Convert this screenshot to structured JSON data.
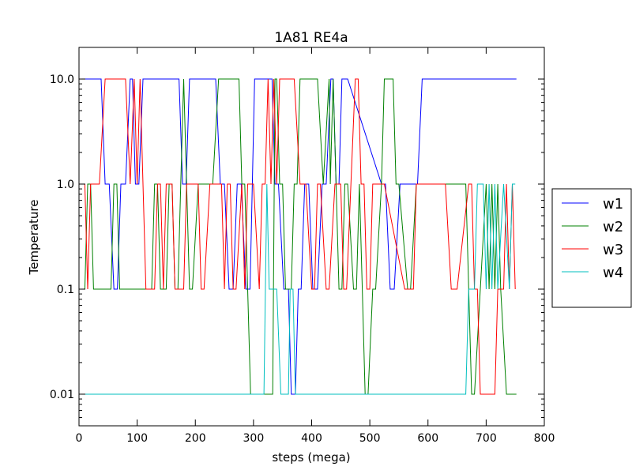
{
  "chart_data": {
    "type": "line",
    "title": "1A81 RE4a",
    "xlabel": "steps (mega)",
    "ylabel": "Temperature",
    "xlim": [
      0,
      800
    ],
    "ylim": [
      0.005,
      20
    ],
    "yscale": "log",
    "xticks": [
      0,
      100,
      200,
      300,
      400,
      500,
      600,
      700,
      800
    ],
    "xtick_labels": [
      "0",
      "100",
      "200",
      "300",
      "400",
      "500",
      "600",
      "700",
      "800"
    ],
    "yticks": [
      0.01,
      0.1,
      1.0,
      10.0
    ],
    "ytick_labels": [
      "0.01",
      "0.1",
      "1.0",
      "10.0"
    ],
    "grid": false,
    "legend_position": "outside-right",
    "series": [
      {
        "name": "w1",
        "color": "#0000ff",
        "x": [
          5,
          38,
          45,
          52,
          60,
          66,
          72,
          80,
          88,
          92,
          97,
          103,
          110,
          172,
          178,
          184,
          190,
          235,
          243,
          250,
          258,
          265,
          272,
          279,
          287,
          294,
          302,
          332,
          337,
          343,
          352,
          360,
          365,
          372,
          377,
          382,
          388,
          395,
          402,
          410,
          418,
          425,
          433,
          437,
          442,
          447,
          452,
          462,
          520,
          527,
          535,
          542,
          552,
          562,
          575,
          582,
          590,
          752
        ],
        "y": [
          10,
          10,
          1,
          1,
          0.1,
          0.1,
          1,
          1,
          10,
          10,
          1,
          1,
          10,
          10,
          1,
          1,
          10,
          10,
          1,
          1,
          0.1,
          0.1,
          1,
          1,
          0.1,
          0.1,
          10,
          10,
          1,
          1,
          0.1,
          0.1,
          0.01,
          0.01,
          0.1,
          0.1,
          1,
          1,
          0.1,
          0.1,
          1,
          1,
          10,
          10,
          1,
          1,
          10,
          10,
          1,
          1,
          0.1,
          0.1,
          1,
          1,
          1,
          1,
          10,
          10
        ]
      },
      {
        "name": "w2",
        "color": "#008000",
        "x": [
          5,
          10,
          15,
          20,
          25,
          30,
          55,
          60,
          65,
          70,
          75,
          125,
          130,
          135,
          140,
          150,
          155,
          160,
          165,
          170,
          175,
          180,
          185,
          190,
          195,
          205,
          230,
          240,
          275,
          280,
          285,
          290,
          295,
          300,
          325,
          333,
          337,
          340,
          345,
          350,
          355,
          365,
          370,
          375,
          380,
          410,
          420,
          430,
          432,
          437,
          442,
          447,
          452,
          457,
          462,
          472,
          477,
          482,
          487,
          492,
          497,
          505,
          510,
          520,
          525,
          540,
          545,
          550,
          565,
          570,
          580,
          585,
          590,
          600,
          665,
          670,
          675,
          680,
          690,
          700,
          705,
          710,
          715,
          720,
          725,
          735,
          745,
          752
        ],
        "y": [
          0.1,
          0.1,
          1,
          1,
          0.1,
          0.1,
          0.1,
          1,
          1,
          0.1,
          0.1,
          0.1,
          1,
          1,
          0.1,
          0.1,
          1,
          1,
          0.1,
          0.1,
          1,
          10,
          1,
          0.1,
          0.1,
          1,
          1,
          10,
          10,
          1,
          1,
          0.1,
          0.01,
          0.01,
          0.01,
          0.01,
          10,
          10,
          1,
          1,
          0.1,
          0.1,
          1,
          1,
          10,
          10,
          1,
          10,
          1,
          10,
          1,
          0.1,
          0.1,
          1,
          1,
          0.1,
          0.1,
          1,
          0.1,
          0.01,
          0.01,
          0.1,
          0.1,
          1,
          10,
          10,
          1,
          1,
          0.1,
          0.1,
          1,
          1,
          1,
          1,
          1,
          0.1,
          0.01,
          0.01,
          0.1,
          1,
          0.1,
          1,
          0.1,
          1,
          0.1,
          0.01,
          0.01,
          0.01
        ]
      },
      {
        "name": "w3",
        "color": "#ff0000",
        "x": [
          5,
          10,
          15,
          20,
          25,
          35,
          45,
          80,
          88,
          95,
          100,
          105,
          110,
          115,
          120,
          130,
          135,
          140,
          145,
          150,
          160,
          165,
          170,
          180,
          185,
          195,
          205,
          210,
          215,
          225,
          235,
          245,
          250,
          255,
          260,
          265,
          270,
          280,
          285,
          290,
          300,
          310,
          315,
          320,
          325,
          330,
          335,
          340,
          345,
          350,
          370,
          380,
          390,
          400,
          405,
          410,
          415,
          425,
          430,
          440,
          450,
          455,
          460,
          475,
          480,
          485,
          490,
          495,
          500,
          505,
          510,
          520,
          525,
          560,
          565,
          575,
          580,
          590,
          600,
          620,
          630,
          640,
          650,
          670,
          675,
          680,
          685,
          690,
          700,
          715,
          720,
          730,
          735,
          740,
          745,
          750
        ],
        "y": [
          1,
          1,
          0.1,
          1,
          1,
          1,
          10,
          10,
          1,
          10,
          1,
          10,
          1,
          0.1,
          0.1,
          0.1,
          1,
          1,
          0.1,
          1,
          1,
          0.1,
          0.1,
          0.1,
          1,
          1,
          1,
          0.1,
          0.1,
          1,
          1,
          1,
          0.1,
          1,
          1,
          0.1,
          0.1,
          1,
          0.1,
          1,
          1,
          0.1,
          1,
          1,
          10,
          1,
          10,
          1,
          10,
          10,
          10,
          1,
          1,
          0.1,
          0.1,
          1,
          1,
          0.1,
          0.1,
          1,
          1,
          0.1,
          0.1,
          10,
          10,
          1,
          1,
          0.1,
          0.1,
          1,
          1,
          1,
          1,
          0.1,
          0.1,
          0.1,
          1,
          1,
          1,
          1,
          1,
          0.1,
          0.1,
          1,
          1,
          0.1,
          0.1,
          0.01,
          0.01,
          0.01,
          0.1,
          0.1,
          1,
          0.1,
          1,
          0.1
        ]
      },
      {
        "name": "w4",
        "color": "#00bfbf",
        "x": [
          5,
          290,
          295,
          300,
          318,
          323,
          327,
          333,
          340,
          347,
          355,
          360,
          363,
          368,
          372,
          460,
          465,
          475,
          478,
          483,
          488,
          510,
          515,
          520,
          580,
          590,
          595,
          605,
          610,
          615,
          620,
          640,
          645,
          650,
          660,
          665,
          670,
          680,
          685,
          695,
          700,
          705,
          710,
          715,
          720,
          730,
          740,
          745,
          750
        ],
        "y": [
          0.01,
          0.01,
          0.01,
          0.01,
          0.01,
          1,
          0.1,
          0.1,
          0.1,
          0.01,
          0.01,
          0.01,
          0.1,
          0.1,
          0.01,
          0.01,
          0.01,
          0.01,
          0.01,
          0.01,
          0.01,
          0.01,
          0.01,
          0.01,
          0.01,
          0.01,
          0.01,
          0.01,
          0.01,
          0.01,
          0.01,
          0.01,
          0.01,
          0.01,
          0.01,
          0.01,
          0.1,
          0.1,
          1,
          1,
          0.1,
          1,
          0.1,
          1,
          0.1,
          1,
          0.1,
          1,
          1
        ]
      }
    ]
  }
}
